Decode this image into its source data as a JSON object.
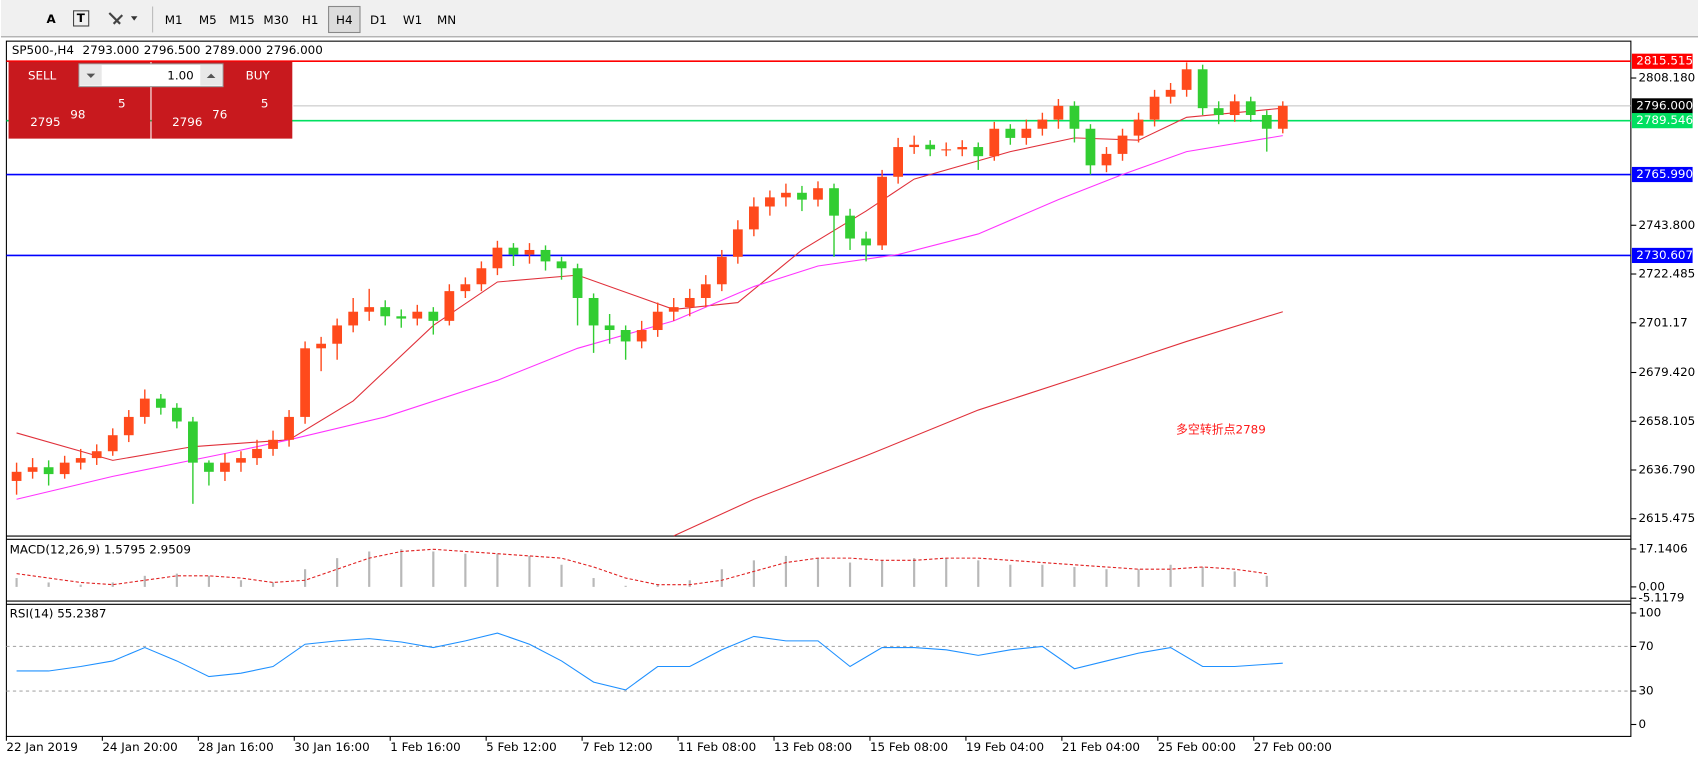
{
  "toolbar": {
    "timeframes": [
      "M1",
      "M5",
      "M15",
      "M30",
      "H1",
      "H4",
      "D1",
      "W1",
      "MN"
    ],
    "active": "H4"
  },
  "chart_header": {
    "symbol": "SP500-,H4",
    "open": "2793.000",
    "high": "2796.500",
    "low": "2789.000",
    "close": "2796.000"
  },
  "trade_panel": {
    "sell": "SELL",
    "buy": "BUY",
    "volume": "1.00",
    "bid": {
      "prefix": "2795",
      "big": "98",
      "sup": "5"
    },
    "ask": {
      "prefix": "2796",
      "big": "76",
      "sup": "5"
    }
  },
  "chart_data": {
    "type": "candlestick",
    "up_color": "#ff4a1c",
    "down_color": "#32cd32",
    "ohlc": [
      [
        2632,
        2640,
        2626,
        2636
      ],
      [
        2636,
        2642,
        2633,
        2638
      ],
      [
        2638,
        2641,
        2630,
        2635
      ],
      [
        2635,
        2643,
        2633,
        2640
      ],
      [
        2640,
        2646,
        2637,
        2642
      ],
      [
        2642,
        2648,
        2639,
        2645
      ],
      [
        2645,
        2655,
        2643,
        2652
      ],
      [
        2652,
        2663,
        2649,
        2660
      ],
      [
        2660,
        2672,
        2657,
        2668
      ],
      [
        2668,
        2670,
        2661,
        2664
      ],
      [
        2664,
        2666,
        2655,
        2658
      ],
      [
        2658,
        2660,
        2622,
        2640
      ],
      [
        2640,
        2641,
        2630,
        2636
      ],
      [
        2636,
        2644,
        2632,
        2640
      ],
      [
        2640,
        2645,
        2636,
        2642
      ],
      [
        2642,
        2650,
        2639,
        2646
      ],
      [
        2646,
        2654,
        2643,
        2650
      ],
      [
        2650,
        2663,
        2647,
        2660
      ],
      [
        2660,
        2693,
        2657,
        2690
      ],
      [
        2690,
        2695,
        2680,
        2692
      ],
      [
        2692,
        2703,
        2685,
        2700
      ],
      [
        2700,
        2712,
        2697,
        2706
      ],
      [
        2706,
        2716,
        2702,
        2708
      ],
      [
        2708,
        2711,
        2700,
        2704
      ],
      [
        2704,
        2707,
        2699,
        2703
      ],
      [
        2703,
        2709,
        2700,
        2706
      ],
      [
        2706,
        2708,
        2696,
        2702
      ],
      [
        2702,
        2718,
        2700,
        2715
      ],
      [
        2715,
        2721,
        2712,
        2718
      ],
      [
        2718,
        2728,
        2715,
        2725
      ],
      [
        2725,
        2737,
        2722,
        2734
      ],
      [
        2734,
        2736,
        2726,
        2731
      ],
      [
        2731,
        2736,
        2727,
        2733
      ],
      [
        2733,
        2735,
        2724,
        2728
      ],
      [
        2728,
        2730,
        2720,
        2725
      ],
      [
        2725,
        2727,
        2700,
        2712
      ],
      [
        2712,
        2714,
        2688,
        2700
      ],
      [
        2700,
        2705,
        2692,
        2698
      ],
      [
        2698,
        2700,
        2685,
        2693
      ],
      [
        2693,
        2702,
        2690,
        2698
      ],
      [
        2698,
        2710,
        2695,
        2706
      ],
      [
        2706,
        2712,
        2702,
        2708
      ],
      [
        2708,
        2716,
        2704,
        2712
      ],
      [
        2712,
        2722,
        2708,
        2718
      ],
      [
        2718,
        2733,
        2715,
        2730
      ],
      [
        2730,
        2746,
        2727,
        2742
      ],
      [
        2742,
        2756,
        2739,
        2752
      ],
      [
        2752,
        2759,
        2748,
        2756
      ],
      [
        2756,
        2762,
        2752,
        2758
      ],
      [
        2758,
        2761,
        2750,
        2755
      ],
      [
        2755,
        2763,
        2752,
        2760
      ],
      [
        2760,
        2762,
        2730,
        2748
      ],
      [
        2748,
        2751,
        2733,
        2738
      ],
      [
        2738,
        2741,
        2728,
        2735
      ],
      [
        2735,
        2768,
        2733,
        2765
      ],
      [
        2765,
        2782,
        2762,
        2778
      ],
      [
        2778,
        2783,
        2775,
        2779
      ],
      [
        2779,
        2781,
        2774,
        2777
      ],
      [
        2777,
        2780,
        2774,
        2777
      ],
      [
        2777,
        2781,
        2774,
        2778
      ],
      [
        2778,
        2780,
        2768,
        2774
      ],
      [
        2774,
        2789,
        2772,
        2786
      ],
      [
        2786,
        2788,
        2779,
        2782
      ],
      [
        2782,
        2790,
        2779,
        2786
      ],
      [
        2786,
        2793,
        2783,
        2790
      ],
      [
        2790,
        2799,
        2786,
        2796
      ],
      [
        2796,
        2798,
        2780,
        2786
      ],
      [
        2786,
        2788,
        2766,
        2770
      ],
      [
        2770,
        2778,
        2767,
        2775
      ],
      [
        2775,
        2786,
        2772,
        2783
      ],
      [
        2783,
        2793,
        2780,
        2790
      ],
      [
        2790,
        2803,
        2787,
        2800
      ],
      [
        2800,
        2806,
        2797,
        2803
      ],
      [
        2803,
        2815,
        2800,
        2812
      ],
      [
        2812,
        2814,
        2792,
        2795
      ],
      [
        2795,
        2798,
        2788,
        2792
      ],
      [
        2792,
        2801,
        2789,
        2798
      ],
      [
        2798,
        2800,
        2789,
        2792
      ],
      [
        2792,
        2794,
        2776,
        2786
      ],
      [
        2786,
        2798,
        2784,
        2796
      ]
    ],
    "moving_averages": [
      {
        "color": "#e0303a",
        "x": [
          0,
          6,
          11,
          17,
          21,
          26,
          30,
          35,
          41,
          45,
          49,
          53,
          56,
          62,
          66,
          70,
          73,
          79
        ],
        "values": [
          2653,
          2641,
          2647,
          2650,
          2667,
          2700,
          2719,
          2722,
          2707,
          2710,
          2733,
          2750,
          2764,
          2776,
          2782,
          2781,
          2791,
          2795
        ]
      },
      {
        "color": "#ff33ff",
        "x": [
          0,
          6,
          13,
          17,
          23,
          30,
          35,
          41,
          46,
          50,
          55,
          60,
          65,
          69,
          73,
          79
        ],
        "values": [
          2624,
          2634,
          2644,
          2650,
          2660,
          2676,
          2690,
          2702,
          2717,
          2726,
          2731,
          2740,
          2755,
          2766,
          2776,
          2783
        ]
      },
      {
        "color": "#e0303a",
        "x": [
          41,
          46,
          53,
          60,
          67,
          73,
          79
        ],
        "values": [
          2608,
          2624,
          2643,
          2663,
          2679,
          2693,
          2706
        ]
      }
    ],
    "ylim": [
      2607.9,
      2824.3
    ],
    "yticks": [
      {
        "value": 2808.18,
        "label": "2808.180"
      },
      {
        "value": 2743.8,
        "label": "2743.800"
      },
      2722.485,
      2701.17,
      {
        "value": 2679.42,
        "label": "2679.420"
      },
      2658.105,
      {
        "value": 2636.79,
        "label": "2636.790"
      },
      2615.475
    ],
    "price_lines": [
      {
        "value": 2815.515,
        "color": "#ff0000",
        "label_bg": "#ff0000"
      },
      {
        "value": {
          "value": 2796,
          "label": "2796.000"
        },
        "color": "#c0c0c0",
        "label_bg": "#000000"
      },
      {
        "value": 2789.546,
        "color": "#00e060",
        "label_bg": "#00e060"
      },
      {
        "value": {
          "value": 2765.99,
          "label": "2765.990"
        },
        "color": "#0000ff",
        "label_bg": "#0000ff"
      },
      {
        "value": 2730.607,
        "color": "#0000ff",
        "label_bg": "#0000ff"
      }
    ],
    "annotation": "多空转折点2789",
    "x_labels": [
      "22 Jan 2019",
      "24 Jan 20:00",
      "28 Jan 16:00",
      "30 Jan 16:00",
      "1 Feb 16:00",
      "5 Feb 12:00",
      "7 Feb 12:00",
      "11 Feb 08:00",
      "13 Feb 08:00",
      "15 Feb 08:00",
      "19 Feb 04:00",
      "21 Feb 04:00",
      "25 Feb 00:00",
      "27 Feb 00:00"
    ],
    "macd": {
      "title": "MACD(12,26,9) 1.5795 2.9509",
      "ylim": [
        -6.4,
        21.5
      ],
      "yticks": [
        17.1406,
        {
          "value": 0,
          "label": "0.00"
        },
        -5.1179
      ],
      "x": [
        0,
        2,
        4,
        6,
        8,
        10,
        12,
        14,
        16,
        18,
        20,
        22,
        24,
        26,
        28,
        30,
        32,
        34,
        36,
        38,
        40,
        42,
        44,
        46,
        48,
        50,
        52,
        54,
        56,
        58,
        60,
        62,
        64,
        66,
        68,
        70,
        72,
        74,
        76,
        78
      ],
      "histogram": [
        4,
        2,
        1,
        2,
        5,
        6,
        5,
        3,
        2,
        8,
        13,
        16,
        17,
        16,
        15,
        15,
        14,
        10,
        4,
        0.5,
        1,
        3,
        8,
        12,
        14,
        13,
        11,
        12,
        13,
        13,
        12,
        10,
        10,
        9,
        8,
        8,
        10,
        9,
        7,
        5
      ],
      "signal": [
        6,
        4,
        2,
        1,
        3,
        5,
        5,
        4,
        2,
        3,
        8,
        13,
        16,
        17,
        16,
        15,
        14,
        13,
        9,
        4,
        1,
        1,
        3,
        7,
        11,
        13,
        13,
        12,
        12,
        13,
        13,
        12,
        11,
        10,
        9,
        8,
        8,
        9,
        8,
        6
      ]
    },
    "rsi": {
      "title": "RSI(14) 55.2387",
      "ylim": [
        -10.7,
        107.8
      ],
      "yticks": [
        100,
        70,
        30,
        0
      ],
      "levels": [
        70,
        30
      ],
      "color": "#1e90ff",
      "x": [
        0,
        2,
        4,
        6,
        8,
        10,
        12,
        14,
        16,
        18,
        20,
        22,
        24,
        26,
        28,
        30,
        32,
        34,
        36,
        38,
        40,
        42,
        44,
        46,
        48,
        50,
        52,
        54,
        56,
        58,
        60,
        62,
        64,
        66,
        68,
        70,
        72,
        74,
        76,
        79
      ],
      "values": [
        48,
        48,
        52,
        57,
        69,
        57,
        43,
        46,
        52,
        72,
        75,
        77,
        74,
        69,
        75,
        82,
        72,
        57,
        38,
        31,
        52,
        52,
        67,
        79,
        75,
        75,
        52,
        69,
        69,
        67,
        62,
        67,
        70,
        50,
        57,
        64,
        69,
        52,
        52,
        55
      ]
    }
  }
}
